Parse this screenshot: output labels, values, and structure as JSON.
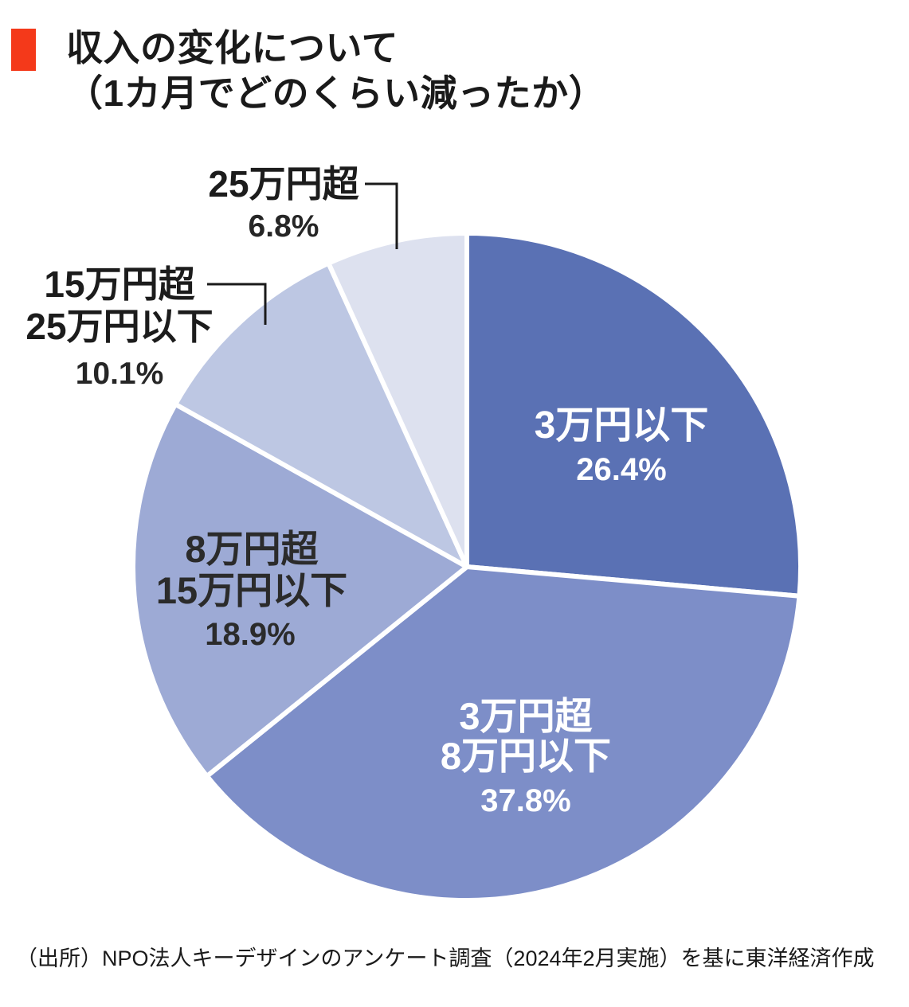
{
  "title": {
    "line1": "収入の変化について",
    "line2": "（1カ月でどのくらい減ったか）"
  },
  "accent_color": "#f4391a",
  "source": "（出所）NPO法人キーデザインのアンケート調査（2024年2月実施）を基に東洋経済作成",
  "chart_data": {
    "type": "pie",
    "title": "収入の変化について（1カ月でどのくらい減ったか）",
    "unit": "%",
    "start_angle_deg": 0,
    "direction": "clockwise",
    "legend_position": "none",
    "slices": [
      {
        "label": "3万円以下",
        "label_lines": [
          "3万円以下"
        ],
        "value": 26.4,
        "pct_text": "26.4%",
        "color": "#5a71b4",
        "label_placement": "inside",
        "label_color": "#ffffff"
      },
      {
        "label": "3万円超8万円以下",
        "label_lines": [
          "3万円超",
          "8万円以下"
        ],
        "value": 37.8,
        "pct_text": "37.8%",
        "color": "#7d8ec8",
        "label_placement": "inside",
        "label_color": "#ffffff"
      },
      {
        "label": "8万円超15万円以下",
        "label_lines": [
          "8万円超",
          "15万円以下"
        ],
        "value": 18.9,
        "pct_text": "18.9%",
        "color": "#9daad5",
        "label_placement": "inside",
        "label_color": "#2b2b2b"
      },
      {
        "label": "15万円超25万円以下",
        "label_lines": [
          "15万円超",
          "25万円以下"
        ],
        "value": 10.1,
        "pct_text": "10.1%",
        "color": "#bdc7e3",
        "label_placement": "outside",
        "label_color": "#1c1c1c"
      },
      {
        "label": "25万円超",
        "label_lines": [
          "25万円超"
        ],
        "value": 6.8,
        "pct_text": "6.8%",
        "color": "#dde1ef",
        "label_placement": "outside",
        "label_color": "#1c1c1c"
      }
    ],
    "stroke_color": "#ffffff",
    "leader_line_color": "#1a1a1a"
  }
}
